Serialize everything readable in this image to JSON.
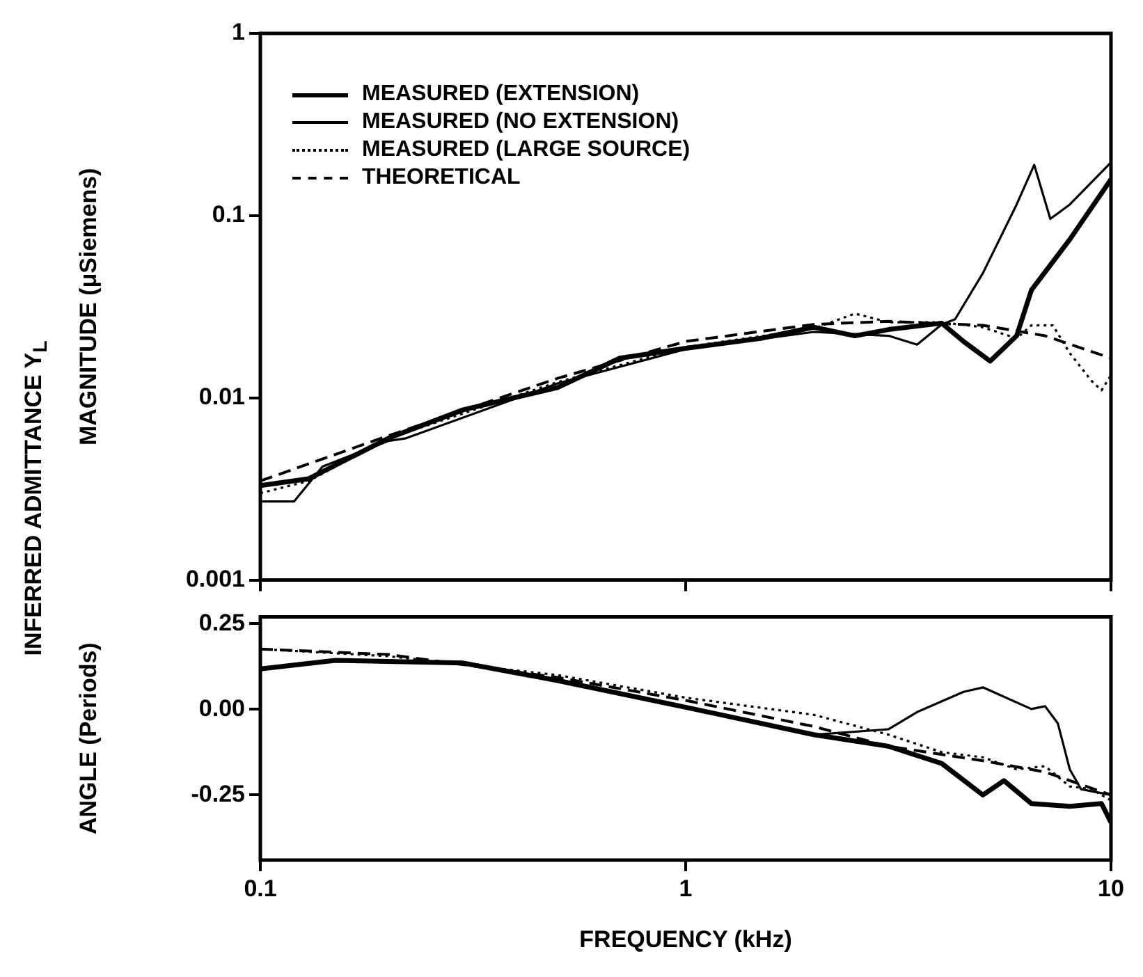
{
  "chart_data": [
    {
      "type": "line",
      "ylabel": "MAGNITUDE (μSiemens)",
      "annotations": [
        "INFERRED ADMITTANCE Y$_{L}$"
      ],
      "xlim": [
        0.1,
        10
      ],
      "xticks": [
        0.1,
        1,
        10
      ],
      "ylim": [
        0.001,
        1
      ],
      "yticks": [
        0.001,
        0.01,
        0.1,
        1
      ],
      "log": "xy",
      "grid": false,
      "legend": "top left",
      "tick_labels": "y",
      "series": [
        {
          "name": "MEASURED (EXTENSION)",
          "color": "#000000",
          "line_style": "solid",
          "x": [
            0.1,
            0.13,
            0.2,
            0.3,
            0.5,
            0.7,
            1,
            1.5,
            2,
            2.5,
            3,
            4,
            4.5,
            5.2,
            6,
            6.5,
            8,
            10
          ],
          "values": [
            0.0033,
            0.0036,
            0.006,
            0.0086,
            0.0114,
            0.0165,
            0.0187,
            0.0212,
            0.0244,
            0.0219,
            0.0237,
            0.0257,
            0.0204,
            0.0159,
            0.0219,
            0.039,
            0.074,
            0.158
          ]
        },
        {
          "name": "MEASURED (NO EXTENSION)",
          "color": "#000000",
          "line_style": "solid",
          "x": [
            0.1,
            0.12,
            0.14,
            0.2,
            0.22,
            0.5,
            1,
            2,
            3,
            3.5,
            4,
            4.3,
            5,
            6,
            6.6,
            7.2,
            8,
            10
          ],
          "values": [
            0.0027,
            0.0027,
            0.0042,
            0.0058,
            0.006,
            0.012,
            0.0185,
            0.023,
            0.0219,
            0.0196,
            0.0253,
            0.027,
            0.0484,
            0.115,
            0.19,
            0.096,
            0.115,
            0.196
          ]
        },
        {
          "name": "MEASURED (LARGE SOURCE)",
          "color": "#000000",
          "line_style": "dotted",
          "x": [
            0.1,
            0.13,
            0.2,
            0.5,
            1,
            2,
            2.5,
            3,
            4,
            5,
            6,
            6.5,
            7.3,
            8,
            9,
            9.5,
            10
          ],
          "values": [
            0.003,
            0.0035,
            0.006,
            0.0122,
            0.019,
            0.024,
            0.029,
            0.026,
            0.026,
            0.0244,
            0.0212,
            0.025,
            0.025,
            0.0176,
            0.0124,
            0.011,
            0.0133
          ]
        },
        {
          "name": "THEORETICAL",
          "color": "#000000",
          "line_style": "dashed",
          "x": [
            0.1,
            0.2,
            0.5,
            1,
            2,
            3,
            5,
            7,
            10
          ],
          "values": [
            0.0035,
            0.0062,
            0.0128,
            0.0204,
            0.0253,
            0.0263,
            0.025,
            0.0219,
            0.0165
          ]
        }
      ]
    },
    {
      "type": "line",
      "xlabel": "FREQUENCY (kHz)",
      "ylabel": "ANGLE (Periods)",
      "xlim": [
        0.1,
        10
      ],
      "xticks": [
        0.1,
        1,
        10
      ],
      "ylim": [
        -0.44,
        0.27
      ],
      "yticks": [
        {
          "value": 0.25,
          "label": "0.25"
        },
        {
          "value": 0,
          "label": "0.00"
        },
        {
          "value": -0.25,
          "label": "-0.25"
        }
      ],
      "log": "x",
      "grid": false,
      "series": [
        {
          "color": "#000000",
          "line_style": "solid",
          "x": [
            0.1,
            0.15,
            0.3,
            0.5,
            1,
            2,
            3,
            4,
            5,
            5.6,
            6.5,
            8,
            9.5,
            10
          ],
          "values": [
            0.118,
            0.143,
            0.135,
            0.084,
            0.006,
            -0.074,
            -0.108,
            -0.158,
            -0.25,
            -0.208,
            -0.275,
            -0.283,
            -0.275,
            -0.33
          ]
        },
        {
          "color": "#000000",
          "line_style": "solid",
          "x": [
            0.1,
            0.15,
            0.3,
            0.5,
            1,
            2,
            3,
            3.5,
            4.5,
            5,
            6.5,
            7,
            7.5,
            8,
            8.5,
            10
          ],
          "values": [
            0.12,
            0.143,
            0.135,
            0.084,
            0.006,
            -0.074,
            -0.058,
            -0.008,
            0.051,
            0.064,
            0.001,
            0.009,
            -0.041,
            -0.175,
            -0.233,
            -0.25
          ]
        },
        {
          "color": "#000000",
          "line_style": "dotted",
          "x": [
            0.1,
            0.2,
            0.5,
            1,
            2,
            3,
            4,
            5,
            6,
            7,
            8,
            9,
            10
          ],
          "values": [
            0.176,
            0.155,
            0.1,
            0.034,
            -0.016,
            -0.074,
            -0.125,
            -0.14,
            -0.175,
            -0.166,
            -0.225,
            -0.233,
            -0.266
          ]
        },
        {
          "color": "#000000",
          "line_style": "dashed",
          "x": [
            0.1,
            0.2,
            0.5,
            1,
            2,
            3,
            5,
            7,
            10
          ],
          "values": [
            0.176,
            0.16,
            0.093,
            0.026,
            -0.05,
            -0.108,
            -0.15,
            -0.183,
            -0.25
          ]
        }
      ]
    }
  ]
}
